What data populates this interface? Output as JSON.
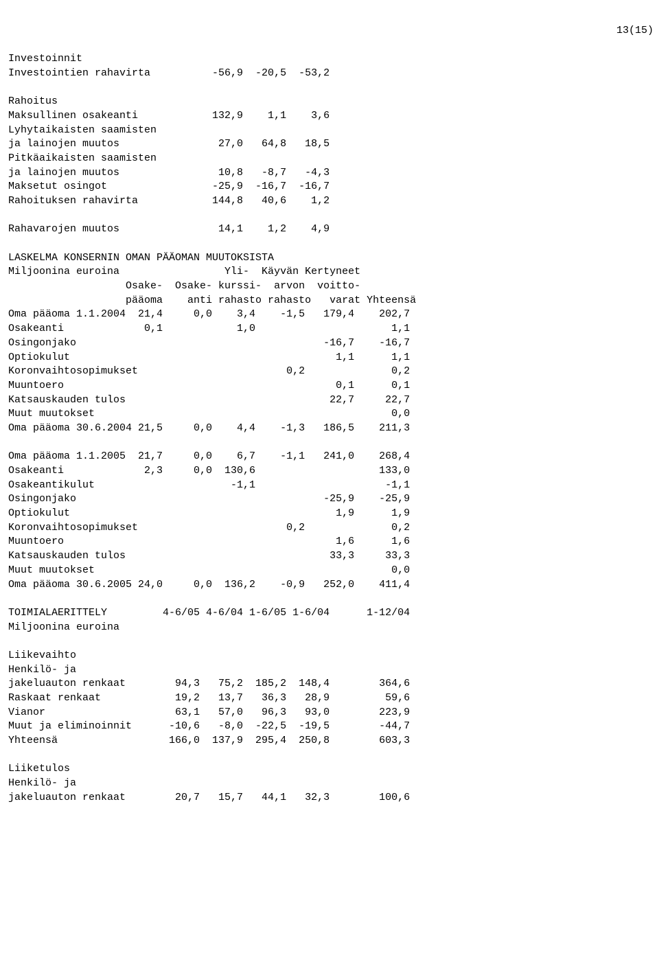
{
  "pagenum": "13(15)",
  "lines": {
    "l1": "Investoinnit",
    "l2": "Investointien rahavirta          -56,9  -20,5  -53,2",
    "l3": "",
    "l4": "Rahoitus",
    "l5": "Maksullinen osakeanti            132,9    1,1    3,6",
    "l6": "Lyhytaikaisten saamisten",
    "l7": "ja lainojen muutos                27,0   64,8   18,5",
    "l8": "Pitkäaikaisten saamisten",
    "l9": "ja lainojen muutos                10,8   -8,7   -4,3",
    "l10": "Maksetut osingot                 -25,9  -16,7  -16,7",
    "l11": "Rahoituksen rahavirta            144,8   40,6    1,2",
    "l12": "",
    "l13": "Rahavarojen muutos                14,1    1,2    4,9",
    "l14": "",
    "l15": "LASKELMA KONSERNIN OMAN PÄÄOMAN MUUTOKSISTA",
    "l16": "Miljoonina euroina                 Yli-  Käyvän Kertyneet",
    "l17": "                   Osake-  Osake- kurssi-  arvon  voitto-",
    "l18": "                   pääoma    anti rahasto rahasto   varat Yhteensä",
    "l19": "Oma pääoma 1.1.2004  21,4     0,0    3,4    -1,5   179,4    202,7",
    "l20": "Osakeanti             0,1            1,0                      1,1",
    "l21": "Osingonjako                                        -16,7    -16,7",
    "l22": "Optiokulut                                           1,1      1,1",
    "l23": "Koronvaihtosopimukset                        0,2              0,2",
    "l24": "Muuntoero                                            0,1      0,1",
    "l25": "Katsauskauden tulos                                 22,7     22,7",
    "l26": "Muut muutokset                                                0,0",
    "l27": "Oma pääoma 30.6.2004 21,5     0,0    4,4    -1,3   186,5    211,3",
    "l28": "",
    "l29": "Oma pääoma 1.1.2005  21,7     0,0    6,7    -1,1   241,0    268,4",
    "l30": "Osakeanti             2,3     0,0  130,6                    133,0",
    "l31": "Osakeantikulut                      -1,1                     -1,1",
    "l32": "Osingonjako                                        -25,9    -25,9",
    "l33": "Optiokulut                                           1,9      1,9",
    "l34": "Koronvaihtosopimukset                        0,2              0,2",
    "l35": "Muuntoero                                            1,6      1,6",
    "l36": "Katsauskauden tulos                                 33,3     33,3",
    "l37": "Muut muutokset                                                0,0",
    "l38": "Oma pääoma 30.6.2005 24,0     0,0  136,2    -0,9   252,0    411,4",
    "l39": "",
    "l40": "TOIMIALAERITTELY         4-6/05 4-6/04 1-6/05 1-6/04      1-12/04",
    "l41": "Miljoonina euroina",
    "l42": "",
    "l43": "Liikevaihto",
    "l44": "Henkilö- ja",
    "l45": "jakeluauton renkaat        94,3   75,2  185,2  148,4        364,6",
    "l46": "Raskaat renkaat            19,2   13,7   36,3   28,9         59,6",
    "l47": "Vianor                     63,1   57,0   96,3   93,0        223,9",
    "l48": "Muut ja eliminoinnit      -10,6   -8,0  -22,5  -19,5        -44,7",
    "l49": "Yhteensä                  166,0  137,9  295,4  250,8        603,3",
    "l50": "",
    "l51": "Liiketulos",
    "l52": "Henkilö- ja",
    "l53": "jakeluauton renkaat        20,7   15,7   44,1   32,3        100,6"
  }
}
